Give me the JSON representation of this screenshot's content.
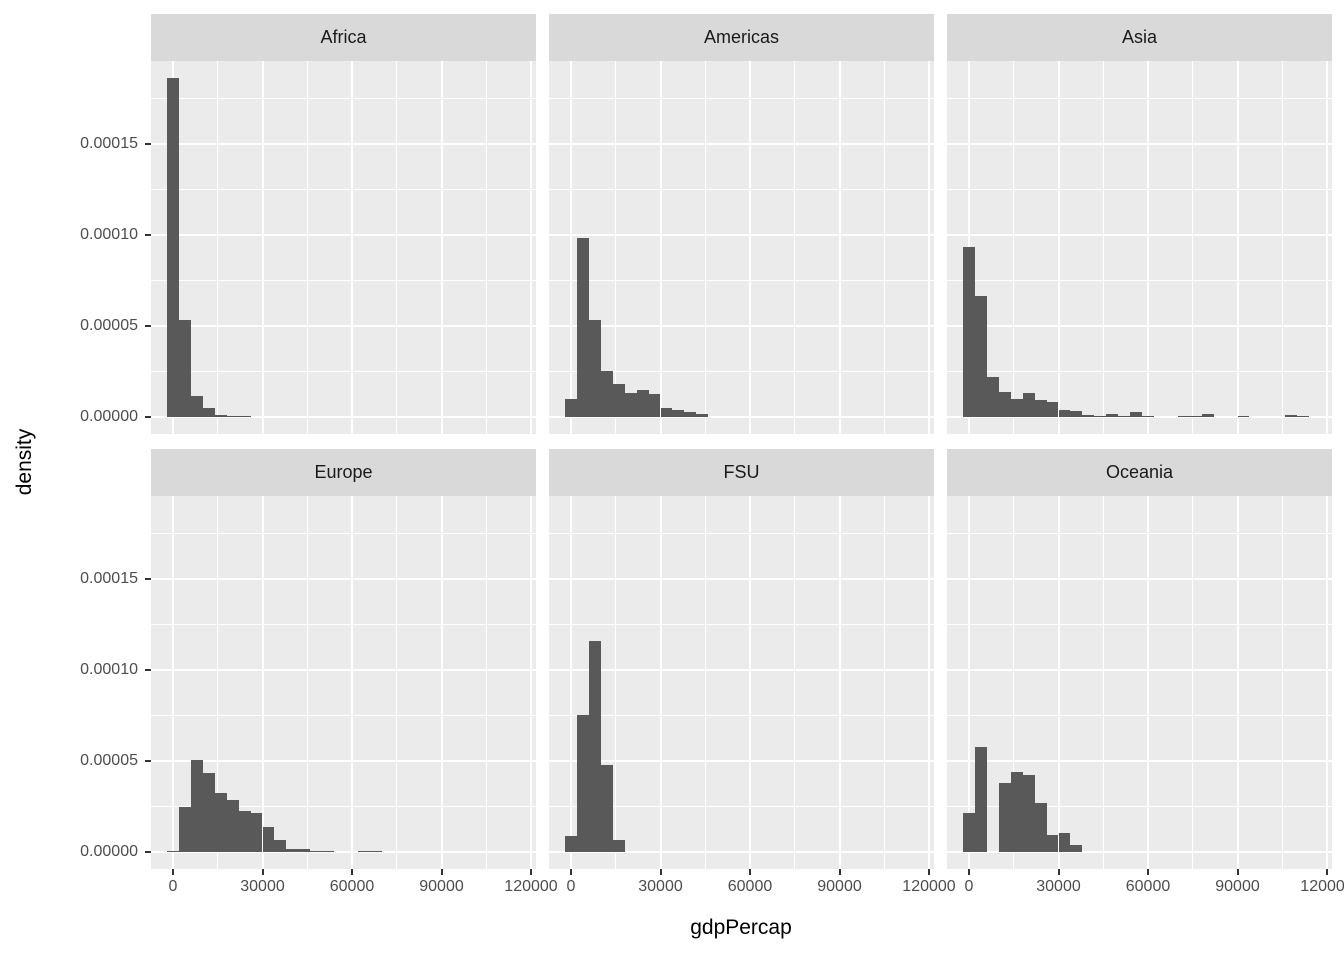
{
  "axes": {
    "x_title": "gdpPercap",
    "y_title": "density",
    "x_tick_labels": [
      "0",
      "30000",
      "60000",
      "90000",
      "120000"
    ],
    "x_tick_values": [
      0,
      30000,
      60000,
      90000,
      120000
    ],
    "x_minor_values": [
      15000,
      45000,
      75000,
      105000
    ],
    "y_tick_labels": [
      "0.00015",
      "0.00010",
      "0.00005",
      "0.00000"
    ],
    "y_tick_values": [
      0.00015,
      0.0001,
      5e-05,
      0
    ],
    "y_minor_values": [
      2.5e-05,
      7.5e-05,
      0.000125,
      0.000175
    ]
  },
  "colors": {
    "bar_fill": "#595959",
    "panel_background": "#ebebeb",
    "strip_background": "#d9d9d9",
    "grid_line": "#ffffff",
    "tick_label": "#4d4d4d",
    "axis_title": "#000000",
    "tick_mark": "#333333"
  },
  "chart_data": {
    "type": "bar",
    "subtype": "faceted-histogram",
    "title": "",
    "xlabel": "gdpPercap",
    "ylabel": "density",
    "grid": "on",
    "legend": "none",
    "facet_layout": {
      "rows": 2,
      "cols": 3
    },
    "bin_start": -2000,
    "bin_width": 4000,
    "x_axis_range": [
      -7400,
      121700
    ],
    "y_axis_range": [
      -9.8e-06,
      0.000196
    ],
    "facets": [
      {
        "label": "Africa",
        "row": 0,
        "col": 0,
        "densities": [
          0.000186,
          5.33e-05,
          1.17e-05,
          4.8e-06,
          1.1e-06,
          8e-07,
          5e-07
        ]
      },
      {
        "label": "Americas",
        "row": 0,
        "col": 1,
        "densities": [
          1.01e-05,
          9.85e-05,
          5.33e-05,
          2.52e-05,
          1.84e-05,
          1.33e-05,
          1.46e-05,
          1.24e-05,
          5.1e-06,
          4.1e-06,
          2.9e-06,
          1.5e-06
        ]
      },
      {
        "label": "Asia",
        "row": 0,
        "col": 2,
        "densities": [
          9.36e-05,
          6.67e-05,
          2.18e-05,
          1.36e-05,
          9.9e-06,
          1.3e-05,
          9.5e-06,
          8.4e-06,
          4e-06,
          3.1e-06,
          1.1e-06,
          6e-07,
          1.8e-06,
          6e-07,
          2.6e-06,
          8e-07,
          0,
          0,
          5e-07,
          5e-07,
          1.5e-06,
          0,
          0,
          5e-07,
          0,
          0,
          0,
          1.2e-06,
          8e-07
        ]
      },
      {
        "label": "Europe",
        "row": 1,
        "col": 0,
        "densities": [
          8e-07,
          2.49e-05,
          5.05e-05,
          4.36e-05,
          3.26e-05,
          2.86e-05,
          2.27e-05,
          2.16e-05,
          1.36e-05,
          6.6e-06,
          1.8e-06,
          1.5e-06,
          8e-07,
          4e-07,
          0,
          0,
          6e-07,
          6e-07
        ]
      },
      {
        "label": "FSU",
        "row": 1,
        "col": 1,
        "densities": [
          8.8e-06,
          7.53e-05,
          0.0001161,
          4.78e-05,
          6.6e-06
        ]
      },
      {
        "label": "Oceania",
        "row": 1,
        "col": 2,
        "densities": [
          2.16e-05,
          5.75e-05,
          0,
          3.81e-05,
          4.41e-05,
          4.23e-05,
          2.71e-05,
          9.3e-06,
          1.06e-05,
          3.7e-06
        ]
      }
    ]
  }
}
